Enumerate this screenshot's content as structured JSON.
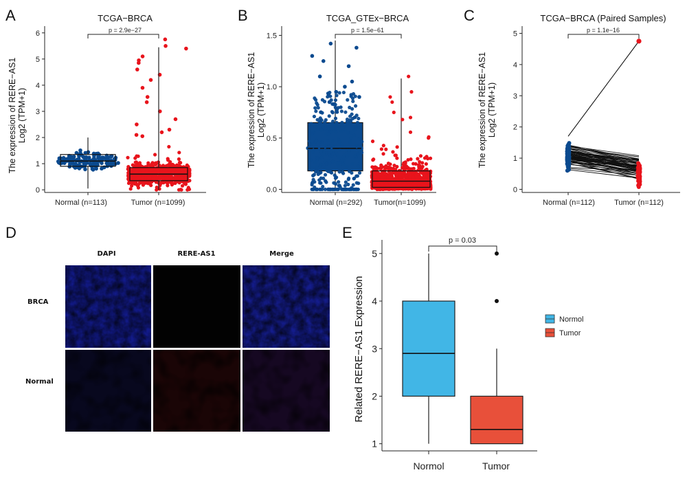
{
  "panel_labels": [
    "A",
    "B",
    "C",
    "D",
    "E"
  ],
  "colors": {
    "normal": "#0b4a8f",
    "tumor": "#e8141c",
    "normal_box": "#41b6e6",
    "tumor_box": "#e8503a"
  },
  "chart_data": [
    {
      "id": "A",
      "type": "box",
      "title": "TCGA−BRCA",
      "ylabel": "The expression of RERE−AS1",
      "ylabel2": "Log2 (TPM+1)",
      "categories": [
        "Normal (n=113)",
        "Tumor (n=1099)"
      ],
      "yticks": [
        "0",
        "1",
        "2",
        "3",
        "4",
        "5",
        "6"
      ],
      "ylim": [
        -0.1,
        6.1
      ],
      "pvalue": "p = 2.9e−27",
      "boxes": [
        {
          "q1": 0.9,
          "median": 1.1,
          "q3": 1.35,
          "lower": 0.05,
          "upper": 2.0
        },
        {
          "q1": 0.35,
          "median": 0.6,
          "q3": 0.85,
          "lower": 0.0,
          "upper": 5.45
        }
      ],
      "outliers": [
        [],
        [
          5.75,
          5.5,
          5.4,
          5.1,
          4.95,
          4.85,
          4.6,
          4.4,
          4.2,
          3.9,
          3.55,
          3.35,
          3.0,
          2.7,
          2.5,
          2.3,
          2.2,
          2.1,
          2.05
        ]
      ]
    },
    {
      "id": "B",
      "type": "box",
      "title": "TCGA_GTEx−BRCA",
      "ylabel": "The expression of RERE−AS1",
      "ylabel2": "Log2 (TPM+1)",
      "categories": [
        "Normal (n=292)",
        "Tumor(n=1099)"
      ],
      "yticks": [
        "0.0",
        "0.5",
        "1.0",
        "1.5"
      ],
      "ylim": [
        -0.03,
        1.55
      ],
      "pvalue": "p = 1.5e−61",
      "boxes": [
        {
          "q1": 0.18,
          "median": 0.4,
          "q3": 0.65,
          "lower": 0.0,
          "upper": 1.45
        },
        {
          "q1": 0.02,
          "median": 0.08,
          "q3": 0.18,
          "lower": 0.0,
          "upper": 1.08
        }
      ],
      "outliers": [
        [
          1.42,
          1.38,
          1.3,
          1.25,
          1.2,
          1.1,
          1.05,
          1.0,
          0.95,
          0.9,
          0.85
        ],
        [
          1.1,
          0.95,
          0.9,
          0.85,
          0.75,
          0.7,
          0.68
        ]
      ]
    },
    {
      "id": "C",
      "type": "paired",
      "title": "TCGA−BRCA (Paired Samples)",
      "ylabel": "The expression of RERE−AS1",
      "ylabel2": "Log2 (TPM+1)",
      "categories": [
        "Normal (n=112)",
        "Tumor (n=112)"
      ],
      "yticks": [
        "0",
        "1",
        "2",
        "3",
        "4",
        "5"
      ],
      "ylim": [
        -0.1,
        5.1
      ],
      "pvalue": "p = 1.1e−16",
      "highlight": {
        "from": 1.7,
        "to": 4.75
      }
    },
    {
      "id": "E",
      "type": "box",
      "ylabel": "Related RERE−AS1 Expression",
      "categories": [
        "Normol",
        "Tumor"
      ],
      "yticks": [
        "1",
        "2",
        "3",
        "4",
        "5"
      ],
      "ylim": [
        0.85,
        5.2
      ],
      "pvalue": "p = 0.03",
      "boxes": [
        {
          "q1": 2.0,
          "median": 2.9,
          "q3": 4.0,
          "lower": 1.0,
          "upper": 5.0
        },
        {
          "q1": 1.0,
          "median": 1.3,
          "q3": 2.0,
          "lower": 1.0,
          "upper": 3.0
        }
      ],
      "outliers": [
        [],
        [
          5.0,
          4.0
        ]
      ],
      "legend": [
        "Normol",
        "Tumor"
      ]
    }
  ],
  "panel_D": {
    "columns": [
      "DAPI",
      "RERE-AS1",
      "Merge"
    ],
    "rows": [
      "BRCA",
      "Normal"
    ]
  }
}
